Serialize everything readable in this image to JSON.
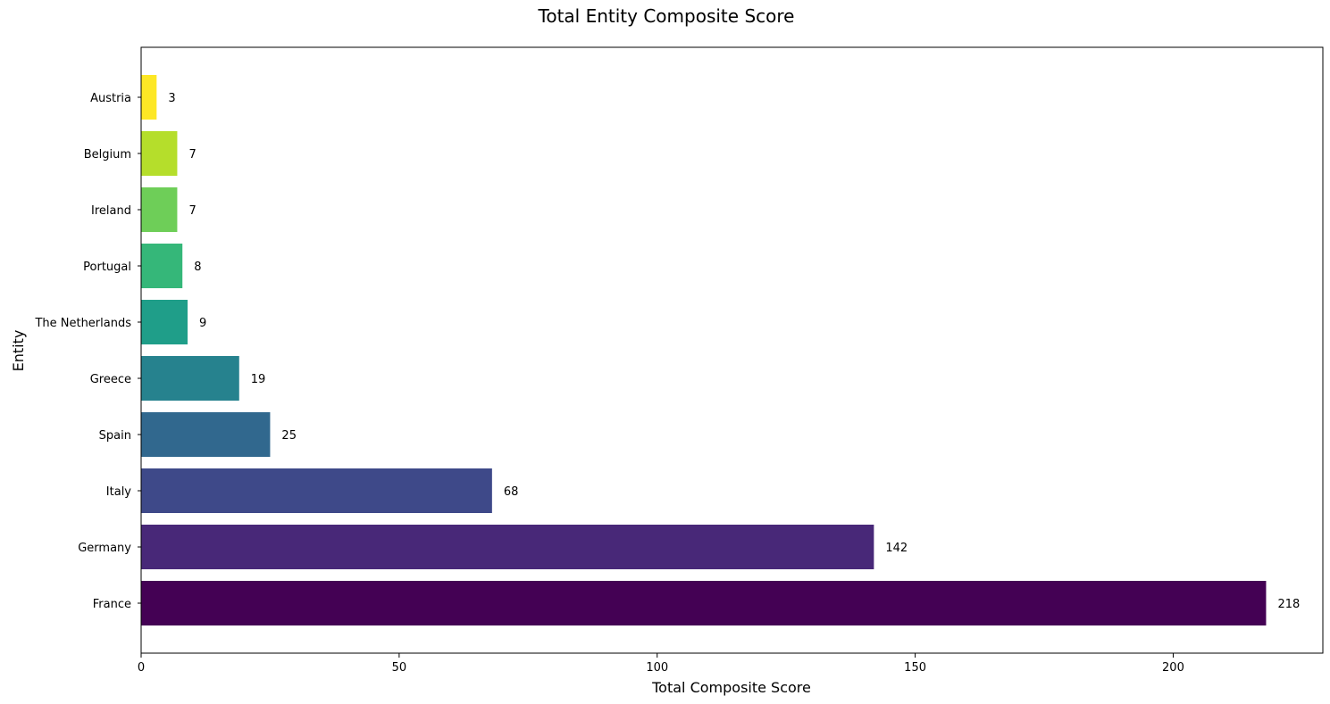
{
  "chart_data": {
    "type": "bar",
    "orientation": "horizontal",
    "title": "Total Entity Composite Score",
    "xlabel": "Total Composite Score",
    "ylabel": "Entity",
    "categories": [
      "France",
      "Germany",
      "Italy",
      "Spain",
      "Greece",
      "The Netherlands",
      "Portugal",
      "Ireland",
      "Belgium",
      "Austria"
    ],
    "values": [
      218,
      142,
      68,
      25,
      19,
      9,
      8,
      7,
      7,
      3
    ],
    "data_labels": [
      "218",
      "142",
      "68",
      "25",
      "19",
      "9",
      "8",
      "7",
      "7",
      "3"
    ],
    "colors": [
      "#440154",
      "#482878",
      "#3e4989",
      "#31688e",
      "#26828e",
      "#1f9e89",
      "#35b779",
      "#6ece58",
      "#b5de2b",
      "#fde725"
    ],
    "xlim": [
      0,
      229
    ],
    "xticks": [
      0,
      50,
      100,
      150,
      200
    ],
    "xtick_labels": [
      "0",
      "50",
      "100",
      "150",
      "200"
    ],
    "grid": false,
    "legend": "none"
  }
}
